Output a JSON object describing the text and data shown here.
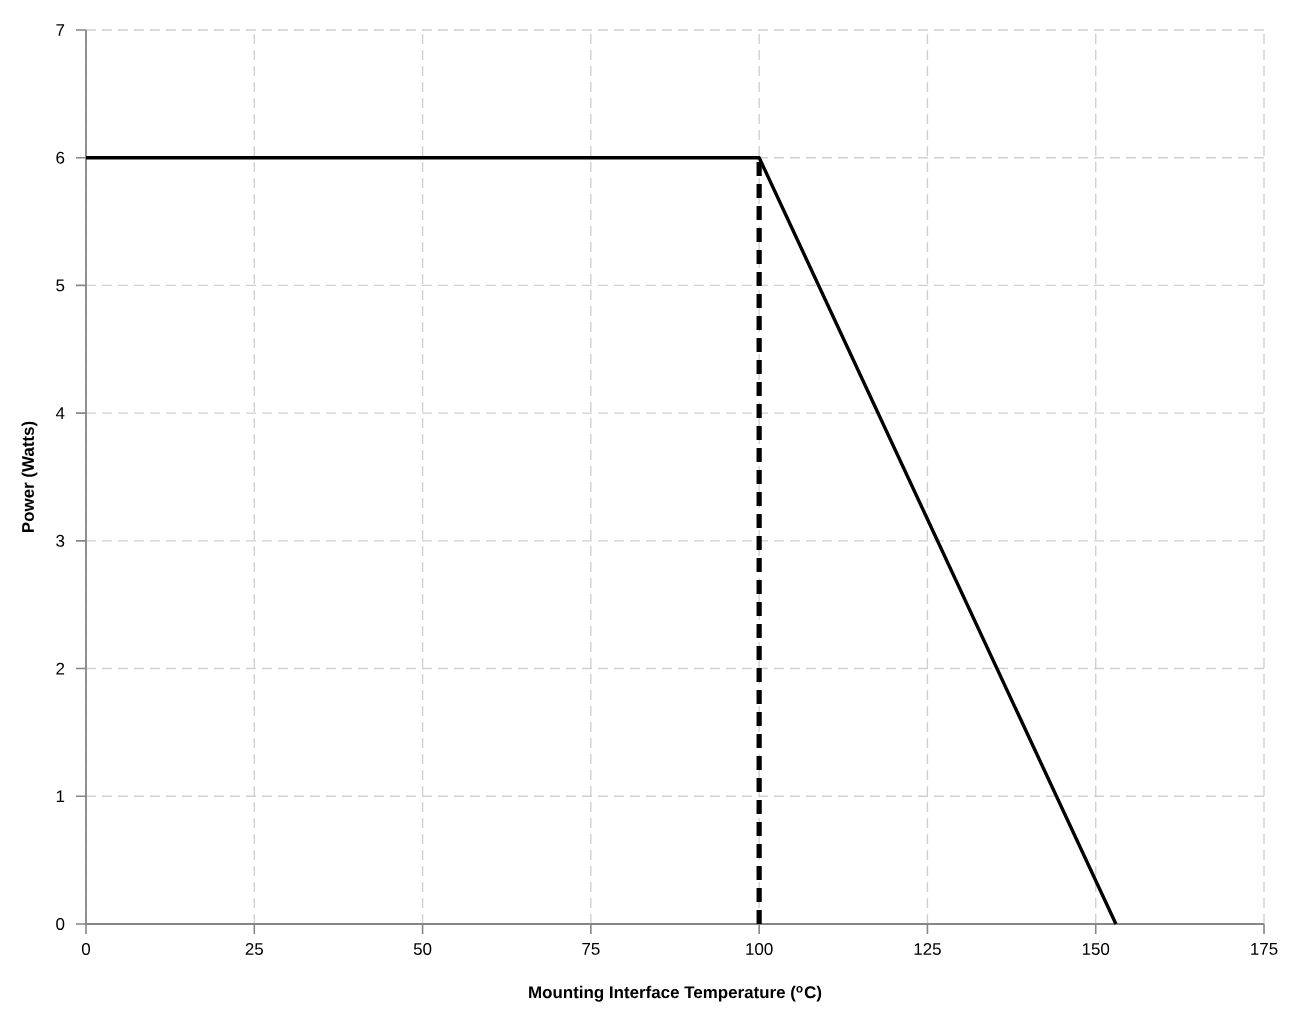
{
  "chart_data": {
    "type": "line",
    "xlabel": "Mounting Interface Temperature ($^{o}$C)",
    "ylabel": "Power (Watts)",
    "xlim": [
      0,
      175
    ],
    "ylim": [
      0,
      7
    ],
    "xticks": [
      0,
      25,
      50,
      75,
      100,
      125,
      150,
      175
    ],
    "yticks": [
      0,
      1,
      2,
      3,
      4,
      5,
      6,
      7
    ],
    "grid": true,
    "marker": "none",
    "series": [
      {
        "x": [
          0,
          100,
          153
        ],
        "values": [
          6,
          6,
          0
        ],
        "color": "#000000",
        "line_style": "solid"
      },
      {
        "x": [
          100,
          100
        ],
        "values": [
          0,
          6
        ],
        "color": "#000000",
        "line_style": "dashed"
      }
    ]
  }
}
